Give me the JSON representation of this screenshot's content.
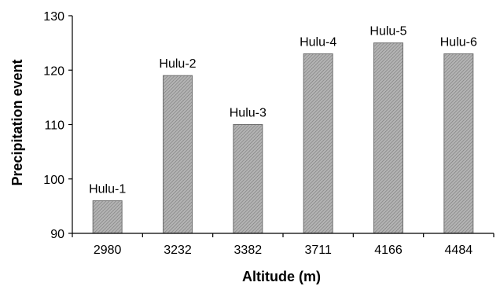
{
  "chart_data": {
    "type": "bar",
    "categories": [
      "2980",
      "3232",
      "3382",
      "3711",
      "4166",
      "4484"
    ],
    "values": [
      96,
      119,
      110,
      123,
      125,
      123
    ],
    "bar_labels": [
      "Hulu-1",
      "Hulu-2",
      "Hulu-3",
      "Hulu-4",
      "Hulu-5",
      "Hulu-6"
    ],
    "xlabel": "Altitude (m)",
    "ylabel": "Precipitation event",
    "ylim": [
      90,
      130
    ],
    "yticks": [
      "90",
      "100",
      "110",
      "120",
      "130"
    ],
    "grid": false,
    "legend": "none",
    "bar_color": "#a0a0a0",
    "bar_edge_color": "#6e6e6e"
  }
}
